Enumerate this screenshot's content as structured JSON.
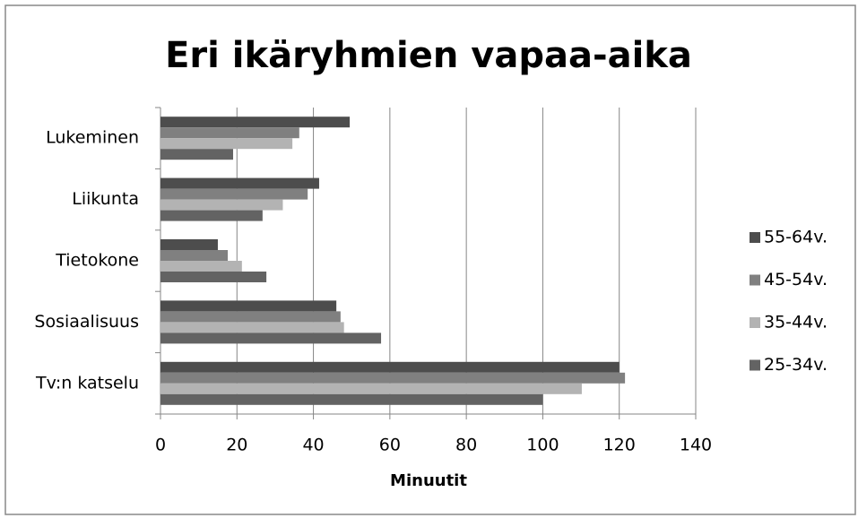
{
  "chart_data": {
    "type": "bar",
    "orientation": "horizontal",
    "title": "Eri ikäryhmien vapaa-aika",
    "x_label": "Minuutit",
    "categories": [
      "Lukeminen",
      "Liikunta",
      "Tietokone",
      "Sosiaalisuus",
      "Tv:n katselu"
    ],
    "series": [
      {
        "name": "55-64v.",
        "color": "#4d4d4d",
        "values": [
          49.5,
          41.5,
          15,
          46,
          120
        ]
      },
      {
        "name": "45-54v.",
        "color": "#808080",
        "values": [
          36.3,
          38.5,
          17.6,
          47.1,
          121.5
        ]
      },
      {
        "name": "35-44v.",
        "color": "#b3b3b3",
        "values": [
          34.5,
          32,
          21.3,
          48,
          110.2
        ]
      },
      {
        "name": "25-34v.",
        "color": "#636363",
        "values": [
          19,
          26.7,
          27.7,
          57.7,
          100
        ]
      }
    ],
    "xlim": [
      0,
      140
    ],
    "xticks": [
      0,
      20,
      40,
      60,
      80,
      100,
      120,
      140
    ],
    "grid": true,
    "legend": "right"
  }
}
